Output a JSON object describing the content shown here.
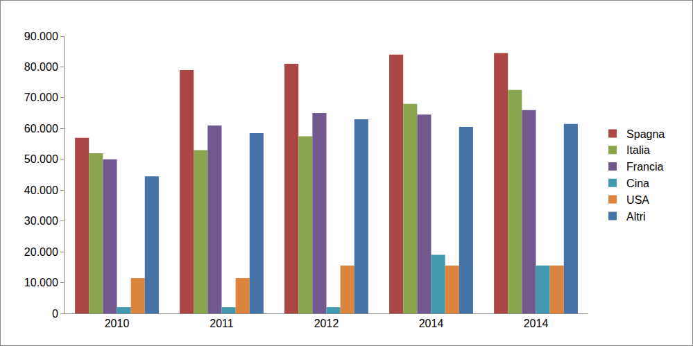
{
  "chart_data": {
    "type": "bar",
    "categories": [
      "2010",
      "2011",
      "2012",
      "2014",
      "2014"
    ],
    "series": [
      {
        "name": "Spagna",
        "color": "#AA4643",
        "values": [
          57000,
          79000,
          81000,
          84000,
          84500
        ]
      },
      {
        "name": "Italia",
        "color": "#89A54E",
        "values": [
          52000,
          53000,
          57500,
          68000,
          72500
        ]
      },
      {
        "name": "Francia",
        "color": "#71588F",
        "values": [
          50000,
          61000,
          65000,
          64500,
          66000
        ]
      },
      {
        "name": "Cina",
        "color": "#4198AF",
        "values": [
          2000,
          2000,
          2000,
          19000,
          15500
        ]
      },
      {
        "name": "USA",
        "color": "#DB843D",
        "values": [
          11500,
          11500,
          15500,
          15500,
          15500
        ]
      },
      {
        "name": "Altri",
        "color": "#4572A7",
        "values": [
          44500,
          58500,
          63000,
          60500,
          61500
        ]
      }
    ],
    "ylim": [
      0,
      90000
    ],
    "yticks": [
      0,
      {
        "value": 10000,
        "label": "10.000"
      },
      {
        "value": 20000,
        "label": "20.000"
      },
      {
        "value": 30000,
        "label": "30.000"
      },
      {
        "value": 40000,
        "label": "40.000"
      },
      {
        "value": 50000,
        "label": "50.000"
      },
      {
        "value": 60000,
        "label": "60.000"
      },
      {
        "value": 70000,
        "label": "70.000"
      },
      {
        "value": 80000,
        "label": "80.000"
      },
      {
        "value": 90000,
        "label": "90.000"
      }
    ],
    "grid": false,
    "legend": "right"
  }
}
